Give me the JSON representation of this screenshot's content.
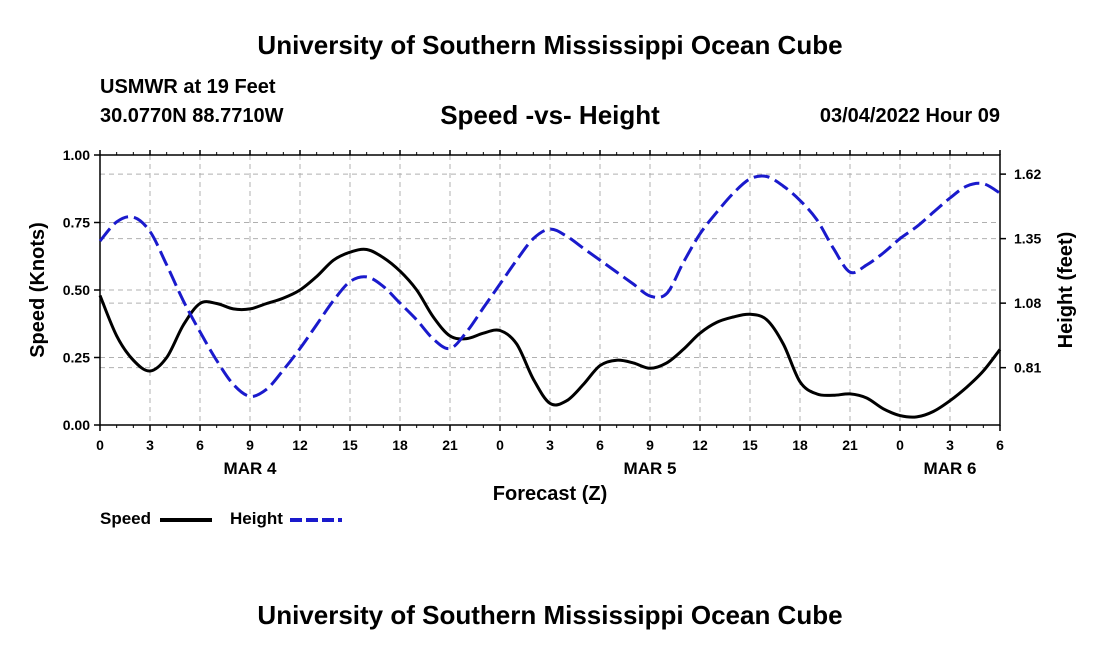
{
  "header": {
    "title": "University of Southern Mississippi Ocean Cube",
    "station": "USMWR at 19 Feet",
    "coords": "30.0770N  88.7710W",
    "date": "03/04/2022 Hour 09"
  },
  "footer": {
    "title": "University of Southern Mississippi Ocean Cube"
  },
  "colors": {
    "speed": "#000000",
    "height": "#1a1acc",
    "grid": "#b0b0b0"
  },
  "chart_data": {
    "type": "line",
    "title": "Speed -vs- Height",
    "xlabel": "Forecast (Z)",
    "ylabel": "Speed (Knots)",
    "ylabel_right": "Height (feet)",
    "x_hours_range": [
      0,
      54
    ],
    "x_tick_hours": [
      0,
      3,
      6,
      9,
      12,
      15,
      18,
      21,
      24,
      27,
      30,
      33,
      36,
      39,
      42,
      45,
      48,
      51,
      54
    ],
    "x_tick_labels": [
      "0",
      "3",
      "6",
      "9",
      "12",
      "15",
      "18",
      "21",
      "0",
      "3",
      "6",
      "9",
      "12",
      "15",
      "18",
      "21",
      "0",
      "3",
      "6"
    ],
    "date_labels": [
      {
        "hour": 9,
        "label": "MAR 4"
      },
      {
        "hour": 33,
        "label": "MAR 5"
      },
      {
        "hour": 51,
        "label": "MAR 6"
      }
    ],
    "ylim_left": [
      0,
      1
    ],
    "y_ticks_left": [
      "0.00",
      "0.25",
      "0.50",
      "0.75",
      "1.00"
    ],
    "y_tick_values_left": [
      0,
      0.25,
      0.5,
      0.75,
      1.0
    ],
    "ylim_right": [
      0.57,
      1.7
    ],
    "y_ticks_right": [
      "0.81",
      "1.08",
      "1.35",
      "1.62"
    ],
    "y_tick_values_right": [
      0.81,
      1.08,
      1.35,
      1.62
    ],
    "grid": true,
    "legend": [
      {
        "name": "Speed",
        "style": "solid"
      },
      {
        "name": "Height",
        "style": "dashed"
      }
    ],
    "series": [
      {
        "name": "Speed",
        "axis": "left",
        "x": [
          0,
          1,
          2,
          3,
          4,
          5,
          6,
          7,
          8,
          9,
          10,
          11,
          12,
          13,
          14,
          15,
          16,
          17,
          18,
          19,
          20,
          21,
          22,
          23,
          24,
          25,
          26,
          27,
          28,
          29,
          30,
          31,
          32,
          33,
          34,
          35,
          36,
          37,
          38,
          39,
          40,
          41,
          42,
          43,
          44,
          45,
          46,
          47,
          48,
          49,
          50,
          51,
          52,
          53,
          54
        ],
        "values": [
          0.48,
          0.33,
          0.24,
          0.2,
          0.25,
          0.37,
          0.45,
          0.45,
          0.43,
          0.43,
          0.45,
          0.47,
          0.5,
          0.55,
          0.61,
          0.64,
          0.65,
          0.62,
          0.57,
          0.5,
          0.4,
          0.33,
          0.32,
          0.34,
          0.35,
          0.3,
          0.17,
          0.08,
          0.09,
          0.15,
          0.22,
          0.24,
          0.23,
          0.21,
          0.23,
          0.28,
          0.34,
          0.38,
          0.4,
          0.41,
          0.39,
          0.3,
          0.16,
          0.115,
          0.11,
          0.115,
          0.1,
          0.06,
          0.035,
          0.03,
          0.05,
          0.09,
          0.14,
          0.2,
          0.28
        ]
      },
      {
        "name": "Height",
        "axis": "right",
        "x": [
          0,
          1,
          2,
          3,
          4,
          5,
          6,
          7,
          8,
          9,
          10,
          11,
          12,
          13,
          14,
          15,
          16,
          17,
          18,
          19,
          20,
          21,
          22,
          23,
          24,
          25,
          26,
          27,
          28,
          29,
          30,
          31,
          32,
          33,
          34,
          35,
          36,
          37,
          38,
          39,
          40,
          41,
          42,
          43,
          44,
          45,
          46,
          47,
          48,
          49,
          50,
          51,
          52,
          53,
          54
        ],
        "values": [
          1.34,
          1.42,
          1.44,
          1.38,
          1.24,
          1.09,
          0.96,
          0.84,
          0.74,
          0.69,
          0.72,
          0.8,
          0.89,
          0.99,
          1.09,
          1.17,
          1.19,
          1.15,
          1.08,
          1.01,
          0.93,
          0.89,
          0.96,
          1.06,
          1.16,
          1.26,
          1.35,
          1.39,
          1.36,
          1.31,
          1.26,
          1.21,
          1.16,
          1.11,
          1.12,
          1.25,
          1.37,
          1.46,
          1.54,
          1.6,
          1.61,
          1.57,
          1.51,
          1.43,
          1.31,
          1.21,
          1.24,
          1.29,
          1.35,
          1.4,
          1.46,
          1.52,
          1.57,
          1.58,
          1.54
        ]
      }
    ]
  }
}
